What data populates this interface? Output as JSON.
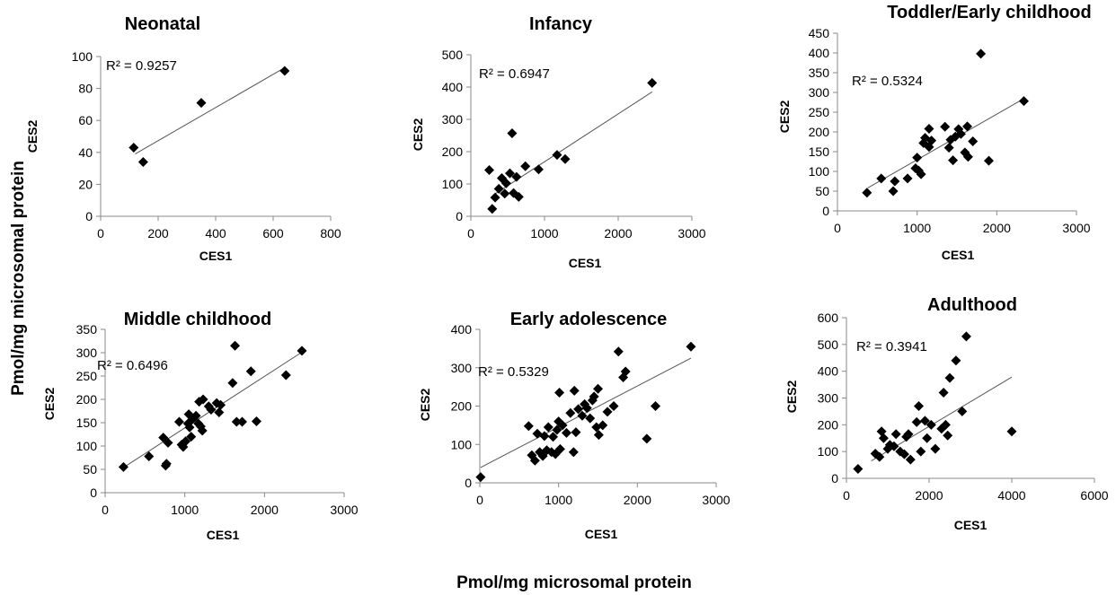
{
  "global_labels": {
    "y": "Pmol/mg microsomal protein",
    "x": "Pmol/mg microsomal protein"
  },
  "chart_data": [
    {
      "type": "scatter",
      "title": "Neonatal",
      "xlabel": "CES1",
      "ylabel": "CES2",
      "xlim": [
        0,
        800
      ],
      "ylim": [
        0,
        100
      ],
      "xticks": [
        0,
        200,
        400,
        600,
        800
      ],
      "yticks": [
        0,
        20,
        40,
        60,
        80,
        100
      ],
      "r2": "R² = 0.9257",
      "trendline": [
        [
          120,
          39
        ],
        [
          640,
          93
        ]
      ],
      "points": [
        [
          115,
          43
        ],
        [
          148,
          34
        ],
        [
          350,
          71
        ],
        [
          640,
          91
        ]
      ]
    },
    {
      "type": "scatter",
      "title": "Infancy",
      "xlabel": "CES1",
      "ylabel": "CES2",
      "xlim": [
        0,
        3000
      ],
      "ylim": [
        0,
        500
      ],
      "xticks": [
        0,
        1000,
        2000,
        3000
      ],
      "yticks": [
        0,
        100,
        200,
        300,
        400,
        500
      ],
      "r2": "R² = 0.6947",
      "trendline": [
        [
          300,
          65
        ],
        [
          2460,
          385
        ]
      ],
      "points": [
        [
          250,
          143
        ],
        [
          290,
          23
        ],
        [
          330,
          58
        ],
        [
          380,
          85
        ],
        [
          420,
          118
        ],
        [
          460,
          70
        ],
        [
          480,
          102
        ],
        [
          530,
          133
        ],
        [
          560,
          257
        ],
        [
          580,
          72
        ],
        [
          620,
          122
        ],
        [
          650,
          60
        ],
        [
          740,
          155
        ],
        [
          920,
          145
        ],
        [
          1170,
          190
        ],
        [
          1280,
          177
        ],
        [
          2460,
          413
        ]
      ]
    },
    {
      "type": "scatter",
      "title": "Toddler/Early childhood",
      "xlabel": "CES1",
      "ylabel": "CES2",
      "xlim": [
        0,
        3000
      ],
      "ylim": [
        0,
        450
      ],
      "xticks": [
        0,
        1000,
        2000,
        3000
      ],
      "yticks": [
        0,
        50,
        100,
        150,
        200,
        250,
        300,
        350,
        400,
        450
      ],
      "r2": "R² = 0.5324",
      "trendline": [
        [
          380,
          58
        ],
        [
          2320,
          282
        ]
      ],
      "points": [
        [
          370,
          46
        ],
        [
          550,
          82
        ],
        [
          700,
          50
        ],
        [
          720,
          75
        ],
        [
          880,
          82
        ],
        [
          980,
          108
        ],
        [
          1000,
          135
        ],
        [
          1020,
          102
        ],
        [
          1050,
          93
        ],
        [
          1080,
          172
        ],
        [
          1100,
          185
        ],
        [
          1150,
          208
        ],
        [
          1150,
          162
        ],
        [
          1180,
          178
        ],
        [
          1350,
          213
        ],
        [
          1400,
          160
        ],
        [
          1420,
          180
        ],
        [
          1450,
          128
        ],
        [
          1480,
          188
        ],
        [
          1520,
          207
        ],
        [
          1550,
          195
        ],
        [
          1600,
          148
        ],
        [
          1630,
          214
        ],
        [
          1640,
          137
        ],
        [
          1700,
          176
        ],
        [
          1800,
          398
        ],
        [
          1900,
          127
        ],
        [
          2340,
          278
        ]
      ]
    },
    {
      "type": "scatter",
      "title": "Middle childhood",
      "xlabel": "CES1",
      "ylabel": "CES2",
      "xlim": [
        0,
        3000
      ],
      "ylim": [
        0,
        350
      ],
      "xticks": [
        0,
        1000,
        2000,
        3000
      ],
      "yticks": [
        0,
        50,
        100,
        150,
        200,
        250,
        300,
        350
      ],
      "r2": "R² = 0.6496",
      "trendline": [
        [
          240,
          55
        ],
        [
          2460,
          300
        ]
      ],
      "points": [
        [
          230,
          55
        ],
        [
          550,
          78
        ],
        [
          730,
          118
        ],
        [
          760,
          58
        ],
        [
          770,
          62
        ],
        [
          790,
          107
        ],
        [
          930,
          152
        ],
        [
          960,
          103
        ],
        [
          980,
          98
        ],
        [
          1010,
          110
        ],
        [
          1040,
          148
        ],
        [
          1050,
          168
        ],
        [
          1060,
          140
        ],
        [
          1080,
          120
        ],
        [
          1100,
          158
        ],
        [
          1140,
          165
        ],
        [
          1170,
          148
        ],
        [
          1180,
          195
        ],
        [
          1200,
          142
        ],
        [
          1220,
          133
        ],
        [
          1230,
          200
        ],
        [
          1300,
          185
        ],
        [
          1330,
          178
        ],
        [
          1400,
          192
        ],
        [
          1430,
          172
        ],
        [
          1450,
          188
        ],
        [
          1600,
          235
        ],
        [
          1630,
          315
        ],
        [
          1650,
          152
        ],
        [
          1720,
          152
        ],
        [
          1830,
          260
        ],
        [
          1900,
          153
        ],
        [
          2270,
          252
        ],
        [
          2470,
          304
        ]
      ]
    },
    {
      "type": "scatter",
      "title": "Early adolescence",
      "xlabel": "CES1",
      "ylabel": "CES2",
      "xlim": [
        0,
        3000
      ],
      "ylim": [
        0,
        400
      ],
      "xticks": [
        0,
        1000,
        2000,
        3000
      ],
      "yticks": [
        0,
        100,
        200,
        300,
        400
      ],
      "r2": "R² = 0.5329",
      "trendline": [
        [
          10,
          40
        ],
        [
          2680,
          325
        ]
      ],
      "points": [
        [
          10,
          15
        ],
        [
          620,
          148
        ],
        [
          660,
          72
        ],
        [
          700,
          58
        ],
        [
          730,
          128
        ],
        [
          760,
          80
        ],
        [
          800,
          70
        ],
        [
          820,
          122
        ],
        [
          850,
          85
        ],
        [
          870,
          145
        ],
        [
          910,
          80
        ],
        [
          930,
          120
        ],
        [
          960,
          75
        ],
        [
          980,
          138
        ],
        [
          1000,
          160
        ],
        [
          1010,
          235
        ],
        [
          1020,
          88
        ],
        [
          1050,
          150
        ],
        [
          1100,
          130
        ],
        [
          1150,
          182
        ],
        [
          1190,
          80
        ],
        [
          1200,
          240
        ],
        [
          1220,
          132
        ],
        [
          1250,
          192
        ],
        [
          1300,
          175
        ],
        [
          1330,
          205
        ],
        [
          1360,
          195
        ],
        [
          1400,
          168
        ],
        [
          1430,
          215
        ],
        [
          1450,
          225
        ],
        [
          1480,
          145
        ],
        [
          1500,
          245
        ],
        [
          1510,
          125
        ],
        [
          1560,
          150
        ],
        [
          1620,
          185
        ],
        [
          1700,
          200
        ],
        [
          1760,
          342
        ],
        [
          1820,
          275
        ],
        [
          1850,
          290
        ],
        [
          2120,
          115
        ],
        [
          2230,
          200
        ],
        [
          2680,
          355
        ]
      ]
    },
    {
      "type": "scatter",
      "title": "Adulthood",
      "xlabel": "CES1",
      "ylabel": "CES2",
      "xlim": [
        0,
        6000
      ],
      "ylim": [
        0,
        600
      ],
      "xticks": [
        0,
        2000,
        4000,
        6000
      ],
      "yticks": [
        0,
        100,
        200,
        300,
        400,
        500,
        600
      ],
      "r2": "R² = 0.3941",
      "trendline": [
        [
          600,
          65
        ],
        [
          4000,
          378
        ]
      ],
      "points": [
        [
          280,
          35
        ],
        [
          700,
          92
        ],
        [
          800,
          80
        ],
        [
          850,
          175
        ],
        [
          900,
          150
        ],
        [
          1000,
          110
        ],
        [
          1050,
          125
        ],
        [
          1150,
          120
        ],
        [
          1200,
          165
        ],
        [
          1300,
          100
        ],
        [
          1400,
          90
        ],
        [
          1450,
          155
        ],
        [
          1500,
          165
        ],
        [
          1550,
          70
        ],
        [
          1700,
          210
        ],
        [
          1750,
          270
        ],
        [
          1800,
          100
        ],
        [
          1900,
          215
        ],
        [
          1950,
          150
        ],
        [
          2050,
          200
        ],
        [
          2150,
          110
        ],
        [
          2300,
          185
        ],
        [
          2350,
          320
        ],
        [
          2400,
          200
        ],
        [
          2450,
          160
        ],
        [
          2500,
          375
        ],
        [
          2650,
          440
        ],
        [
          2800,
          250
        ],
        [
          2900,
          530
        ],
        [
          4000,
          175
        ]
      ]
    }
  ]
}
